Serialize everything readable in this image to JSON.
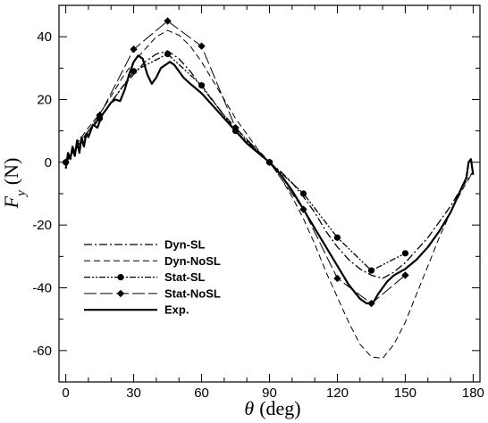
{
  "chart_data": {
    "type": "line",
    "xlabel": "θ (deg)",
    "ylabel": "F_y (N)",
    "xlim": [
      -3,
      183
    ],
    "ylim": [
      -70,
      50
    ],
    "xticks": [
      0,
      30,
      60,
      90,
      120,
      150,
      180
    ],
    "yticks": [
      -60,
      -40,
      -20,
      0,
      20,
      40
    ],
    "xtick_labels": [
      "0",
      "30",
      "60",
      "90",
      "120",
      "150",
      "180"
    ],
    "ytick_labels": [
      "-60",
      "-40",
      "-20",
      "0",
      "20",
      "40"
    ],
    "grid": false,
    "legend_position": "bottom-left",
    "series": [
      {
        "name": "Dyn-SL",
        "style": "dash-dot",
        "x": [
          0,
          5,
          10,
          15,
          20,
          25,
          30,
          35,
          40,
          45,
          50,
          55,
          60,
          65,
          70,
          75,
          80,
          85,
          90,
          95,
          100,
          105,
          110,
          115,
          120,
          125,
          130,
          135,
          140,
          145,
          150,
          155,
          160,
          165,
          170,
          175,
          180
        ],
        "y": [
          0,
          5,
          10,
          14,
          19,
          24,
          28,
          32,
          34.5,
          35.5,
          33,
          29,
          24,
          19.5,
          15,
          11,
          7,
          3.5,
          0,
          -3,
          -6.5,
          -11,
          -16,
          -22,
          -27,
          -31,
          -34,
          -36,
          -37,
          -35,
          -32,
          -28,
          -24,
          -19,
          -14,
          -8,
          -3
        ]
      },
      {
        "name": "Dyn-NoSL",
        "style": "dashed",
        "x": [
          0,
          5,
          10,
          15,
          20,
          25,
          30,
          35,
          40,
          45,
          50,
          55,
          60,
          65,
          70,
          75,
          80,
          85,
          90,
          95,
          100,
          105,
          110,
          115,
          120,
          125,
          130,
          135,
          140,
          145,
          150,
          155,
          160,
          165,
          170,
          175,
          180
        ],
        "y": [
          0,
          6,
          11,
          15.5,
          21,
          27,
          32,
          36,
          40,
          42,
          40.5,
          37,
          32,
          26,
          20,
          14,
          9,
          4,
          0,
          -5,
          -11,
          -18,
          -26,
          -35,
          -43,
          -51,
          -58,
          -62,
          -62.5,
          -58,
          -51,
          -42,
          -33,
          -24,
          -16,
          -9,
          -3
        ]
      },
      {
        "name": "Stat-SL",
        "style": "dash-dot-dot",
        "marker": "circle",
        "x": [
          0,
          15,
          30,
          45,
          60,
          75,
          90,
          105,
          120,
          135,
          150
        ],
        "y": [
          0,
          14,
          29,
          34.5,
          24.5,
          10,
          0,
          -10,
          -24,
          -34.5,
          -29
        ]
      },
      {
        "name": "Stat-NoSL",
        "style": "long-dash",
        "marker": "diamond",
        "x": [
          0,
          15,
          30,
          45,
          60,
          75,
          90,
          105,
          120,
          135,
          150
        ],
        "y": [
          0,
          15,
          36,
          45,
          37,
          11,
          0,
          -15,
          -37,
          -45,
          -36
        ]
      },
      {
        "name": "Exp.",
        "style": "solid",
        "x": [
          0,
          1,
          2,
          3,
          4,
          5,
          6,
          7,
          8,
          9,
          10,
          12,
          14,
          16,
          18,
          20,
          22,
          24,
          26,
          28,
          30,
          32,
          34,
          36,
          38,
          40,
          42,
          44,
          46,
          48,
          50,
          52,
          55,
          60,
          65,
          70,
          75,
          80,
          85,
          90,
          95,
          100,
          105,
          110,
          115,
          120,
          125,
          130,
          133,
          136,
          138,
          140,
          142,
          145,
          150,
          155,
          160,
          165,
          170,
          175,
          177,
          178,
          179,
          180
        ],
        "y": [
          -2,
          3,
          1,
          5,
          2,
          7,
          3,
          8,
          5,
          9,
          8,
          12,
          11,
          15,
          17,
          19,
          20,
          19.5,
          23,
          28,
          32,
          34,
          33,
          28,
          25,
          27,
          30,
          31,
          32,
          31,
          29,
          27,
          25,
          22,
          18,
          14,
          10,
          6,
          3,
          0,
          -4,
          -9,
          -15,
          -21,
          -27,
          -33,
          -39,
          -43.5,
          -45,
          -44.5,
          -42,
          -40,
          -38,
          -36,
          -34,
          -31,
          -27,
          -22,
          -16,
          -8,
          -5,
          0,
          1,
          -4
        ]
      }
    ]
  }
}
